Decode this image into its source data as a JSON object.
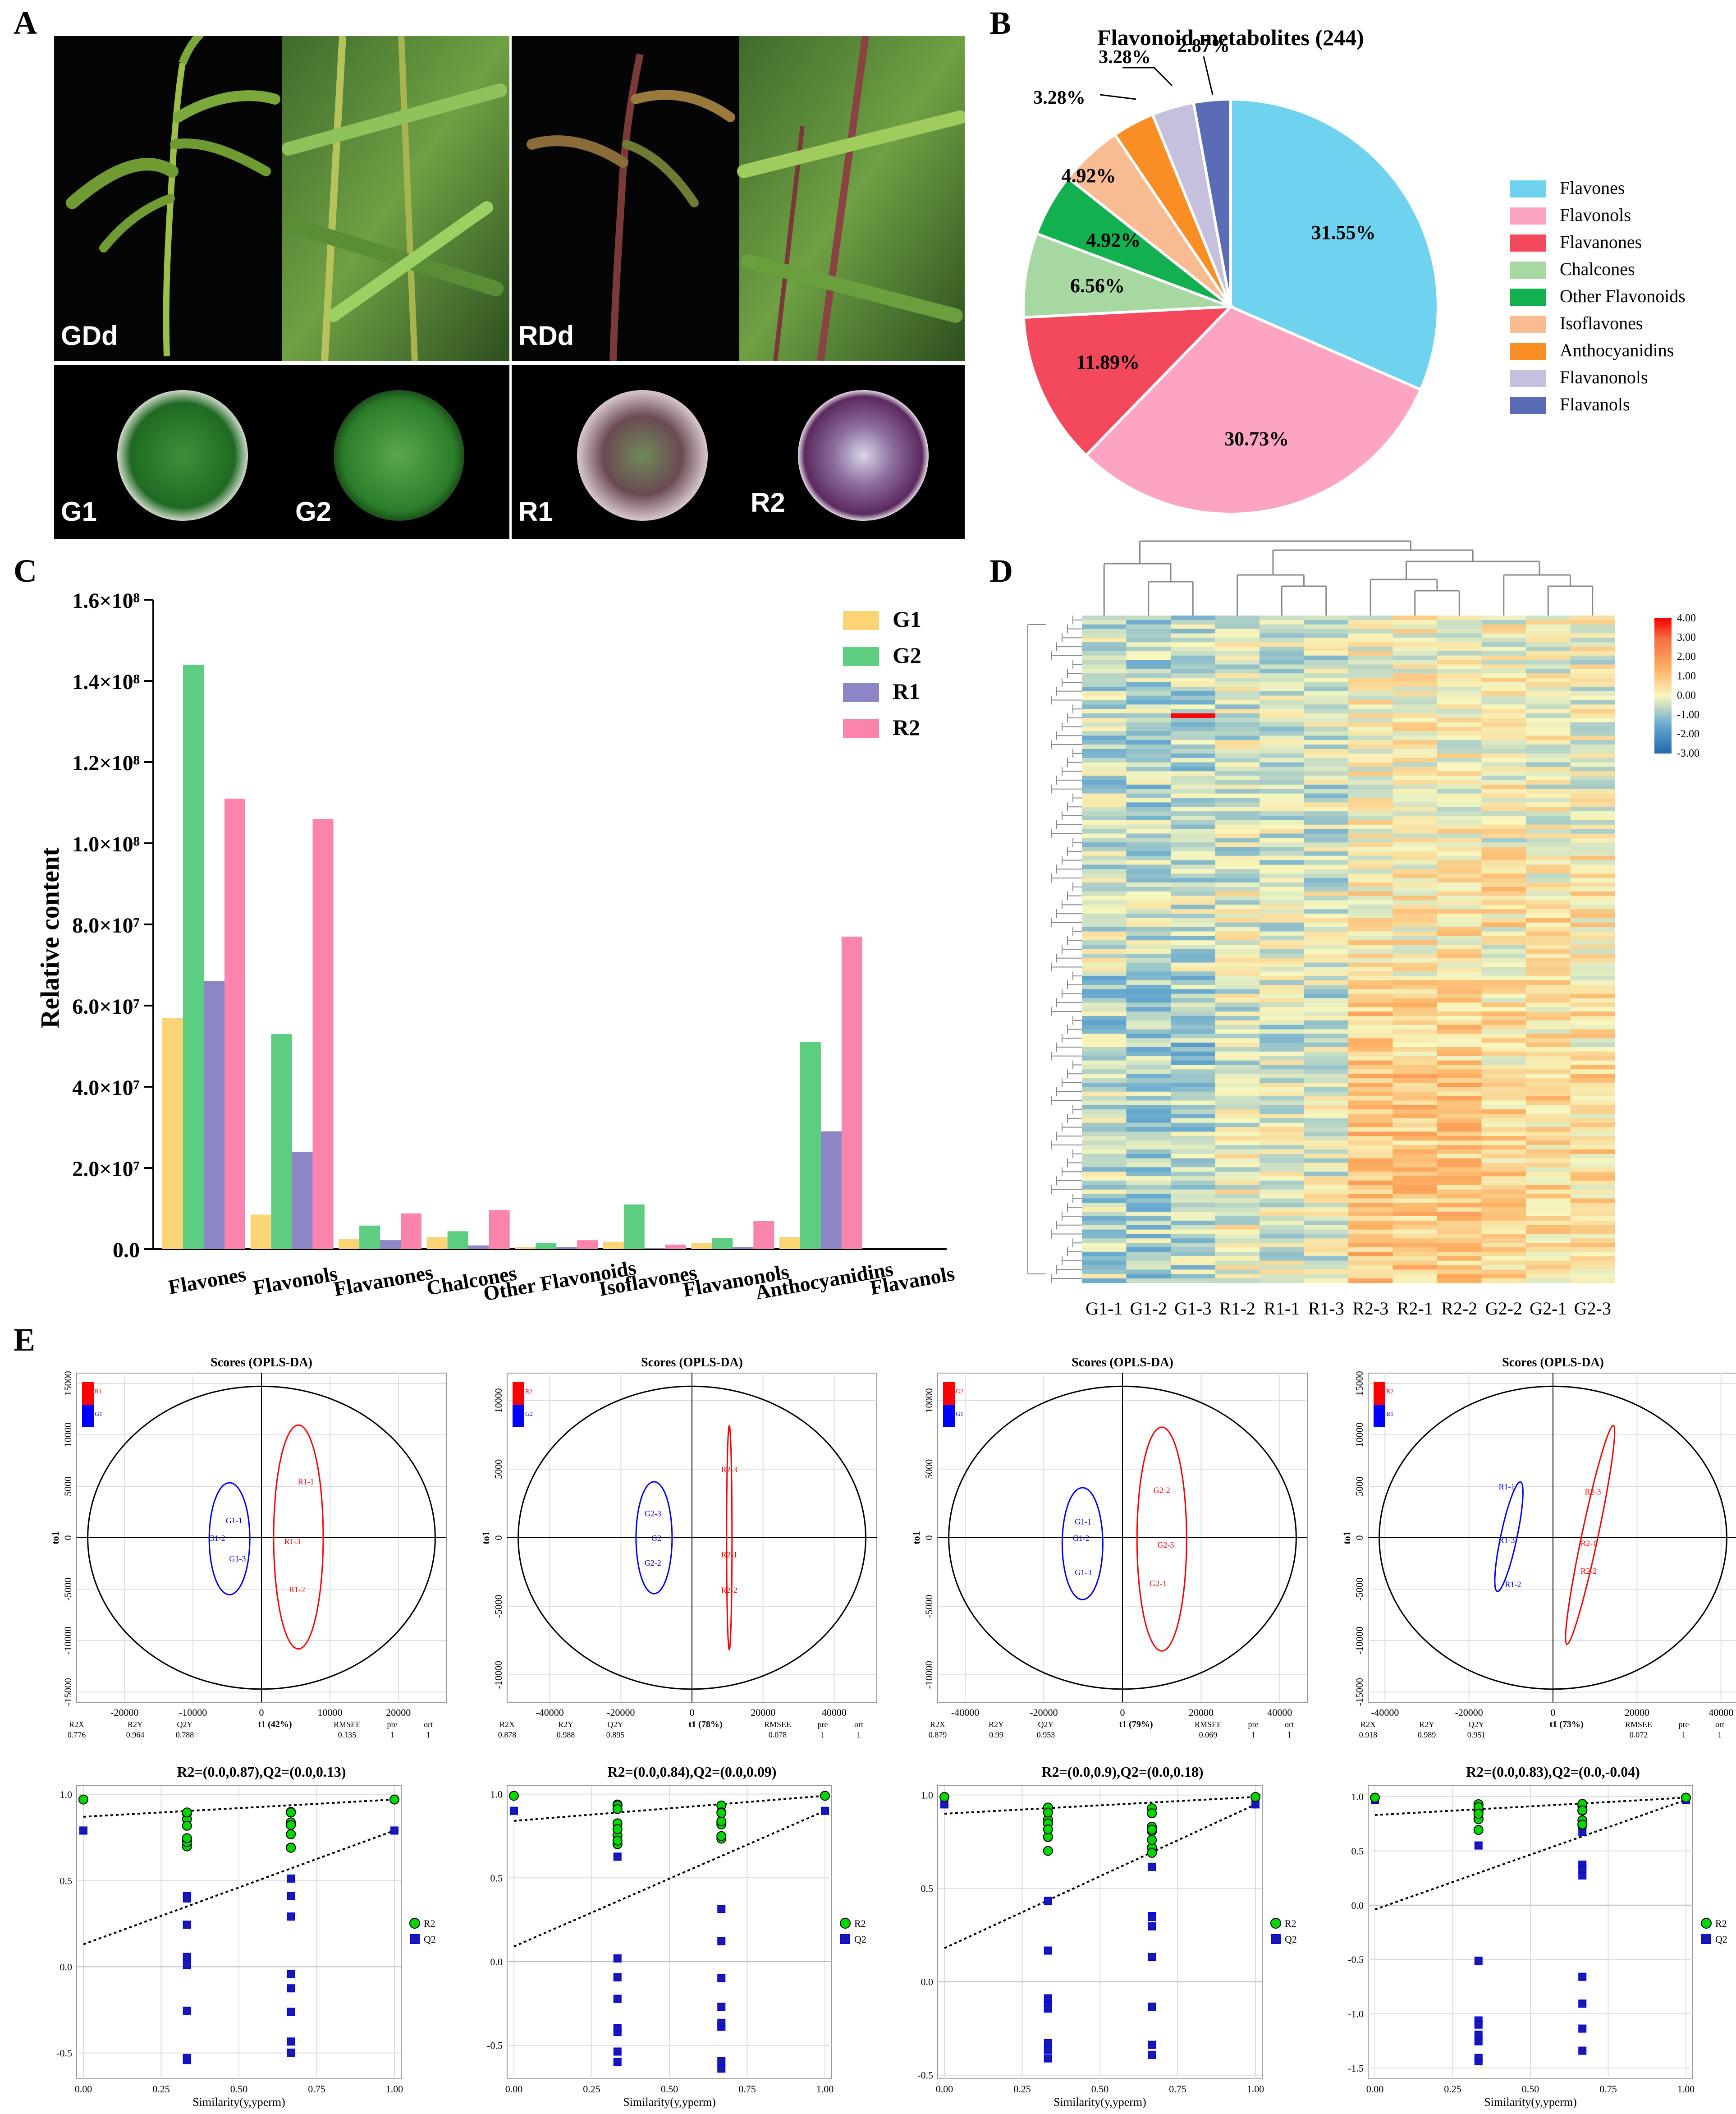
{
  "panels": {
    "a": "A",
    "b": "B",
    "c": "C",
    "d": "D",
    "e": "E"
  },
  "panel_a": {
    "labels": [
      "GDd",
      "RDd",
      "G1",
      "G2",
      "R1",
      "R2"
    ]
  },
  "colors": {
    "flavones": "#6fd3f0",
    "flavonols": "#fca4c2",
    "flavanones": "#f4495c",
    "chalcones": "#a8d8a2",
    "other": "#12b04f",
    "isoflavones": "#f9bc92",
    "anthocyanidins": "#f88e24",
    "flavanonols": "#c5c0de",
    "flavanols": "#5b6cb6",
    "g1": "#fbd575",
    "g2": "#5dcd82",
    "r1": "#8c86c7",
    "r2": "#fb84ad",
    "ring": "#000000",
    "red": "#ff0000",
    "blue": "#0000ff",
    "green": "#00d800",
    "navy": "#1a1aa6"
  },
  "chart_data": [
    {
      "id": "B",
      "type": "pie",
      "title": "Flavonoid metabolites (244)",
      "categories": [
        "Flavones",
        "Flavonols",
        "Flavanones",
        "Chalcones",
        "Other Flavonoids",
        "Isoflavones",
        "Anthocyanidins",
        "Flavanonols",
        "Flavanols"
      ],
      "values": [
        31.55,
        30.73,
        11.89,
        6.56,
        4.92,
        4.92,
        3.28,
        3.28,
        2.87
      ],
      "data_labels": [
        "31.55%",
        "30.73%",
        "11.89%",
        "6.56%",
        "4.92%",
        "4.92%",
        "3.28%",
        "3.28%",
        "2.87%"
      ],
      "legend_position": "right"
    },
    {
      "id": "C",
      "type": "bar",
      "xlabel": "",
      "ylabel": "Relative content",
      "categories": [
        "Flavones",
        "Flavonols",
        "Flavanones",
        "Chalcones",
        "Other Flavonoids",
        "Isoflavones",
        "Flavanonols",
        "Anthocyanidins",
        "Flavanols"
      ],
      "ylim": [
        0,
        160000000
      ],
      "yticks": [
        "0.0",
        "2.0×10⁷",
        "4.0×10⁷",
        "6.0×10⁷",
        "8.0×10⁷",
        "1.0×10⁸",
        "1.2×10⁸",
        "1.4×10⁸",
        "1.6×10⁸"
      ],
      "series": [
        {
          "name": "G1",
          "values": [
            57000000,
            8500000,
            2500000,
            3000000,
            500000,
            1800000,
            1500000,
            3000000,
            0
          ]
        },
        {
          "name": "G2",
          "values": [
            144000000,
            53000000,
            5800000,
            4400000,
            1500000,
            11000000,
            2700000,
            51000000,
            0
          ]
        },
        {
          "name": "R1",
          "values": [
            66000000,
            24000000,
            2200000,
            900000,
            500000,
            300000,
            500000,
            29000000,
            0
          ]
        },
        {
          "name": "R2",
          "values": [
            111000000,
            106000000,
            8800000,
            9600000,
            2200000,
            1100000,
            6900000,
            77000000,
            0
          ]
        }
      ],
      "legend_position": "top-right"
    },
    {
      "id": "D",
      "type": "heatmap",
      "columns": [
        "G1-1",
        "G1-2",
        "G1-3",
        "R1-2",
        "R1-1",
        "R1-3",
        "R2-3",
        "R2-1",
        "R2-2",
        "G2-2",
        "G2-1",
        "G2-3"
      ],
      "row_count": 244,
      "colorbar_ticks": [
        "4.00",
        "3.00",
        "2.00",
        "1.00",
        "0.00",
        "-1.00",
        "-2.00",
        "-3.00"
      ],
      "range": [
        -3,
        4
      ]
    },
    {
      "id": "E1",
      "type": "scatter",
      "title": "Scores (OPLS-DA)",
      "xlabel": "t1 (42%)",
      "ylabel": "to1",
      "legend": [
        "R1",
        "G1"
      ],
      "xlim": [
        -27000,
        27000
      ],
      "ylim": [
        -16000,
        16000
      ],
      "xticks": [
        "-20000",
        "-10000",
        "0",
        "10000",
        "20000"
      ],
      "yticks": [
        "15000",
        "10000",
        "5000",
        "0",
        "-5000",
        "-10000",
        "-15000"
      ],
      "points": [
        {
          "label": "G1-1",
          "x": -4000,
          "y": 1700,
          "group": "G1"
        },
        {
          "label": "G1-2",
          "x": -6500,
          "y": 0,
          "group": "G1"
        },
        {
          "label": "G1-3",
          "x": -3500,
          "y": -2000,
          "group": "G1"
        },
        {
          "label": "R1-1",
          "x": 6500,
          "y": 5500,
          "group": "R1"
        },
        {
          "label": "R1-3",
          "x": 4500,
          "y": -300,
          "group": "R1"
        },
        {
          "label": "R1-2",
          "x": 5200,
          "y": -5000,
          "group": "R1"
        }
      ],
      "stats_headers": [
        "R2X",
        "R2Y",
        "Q2Y",
        "RMSEE",
        "pre",
        "ort"
      ],
      "stats_values": [
        "0.776",
        "0.964",
        "0.788",
        "0.135",
        "1",
        "1"
      ]
    },
    {
      "id": "E2",
      "type": "scatter",
      "title": "Scores (OPLS-DA)",
      "xlabel": "t1 (78%)",
      "ylabel": "to1",
      "legend": [
        "R2",
        "G2"
      ],
      "xlim": [
        -52000,
        52000
      ],
      "ylim": [
        -12000,
        12000
      ],
      "xticks": [
        "-40000",
        "-20000",
        "0",
        "20000",
        "40000"
      ],
      "yticks": [
        "10000",
        "5000",
        "0",
        "-5000",
        "-10000"
      ],
      "points": [
        {
          "label": "G2-3",
          "x": -11000,
          "y": 1800,
          "group": "G2"
        },
        {
          "label": "G2",
          "x": -10000,
          "y": 0,
          "group": "G2"
        },
        {
          "label": "G2-2",
          "x": -11000,
          "y": -1800,
          "group": "G2"
        },
        {
          "label": "R2-3",
          "x": 10500,
          "y": 5000,
          "group": "R2"
        },
        {
          "label": "R2-1",
          "x": 10500,
          "y": -1200,
          "group": "R2"
        },
        {
          "label": "R2-2",
          "x": 10500,
          "y": -3800,
          "group": "R2"
        }
      ],
      "stats_headers": [
        "R2X",
        "R2Y",
        "Q2Y",
        "RMSEE",
        "pre",
        "ort"
      ],
      "stats_values": [
        "0.878",
        "0.988",
        "0.895",
        "0.078",
        "1",
        "1"
      ]
    },
    {
      "id": "E3",
      "type": "scatter",
      "title": "Scores (OPLS-DA)",
      "xlabel": "t1 (79%)",
      "ylabel": "to1",
      "legend": [
        "G2",
        "G1"
      ],
      "xlim": [
        -47000,
        47000
      ],
      "ylim": [
        -12000,
        12000
      ],
      "xticks": [
        "-40000",
        "-20000",
        "0",
        "20000",
        "40000"
      ],
      "yticks": [
        "10000",
        "5000",
        "0",
        "-5000",
        "-10000"
      ],
      "points": [
        {
          "label": "G1-1",
          "x": -10000,
          "y": 1200,
          "group": "G1"
        },
        {
          "label": "G1-2",
          "x": -10500,
          "y": 0,
          "group": "G1"
        },
        {
          "label": "G1-3",
          "x": -10000,
          "y": -2500,
          "group": "G1"
        },
        {
          "label": "G2-2",
          "x": 10000,
          "y": 3500,
          "group": "G2"
        },
        {
          "label": "G2-3",
          "x": 11000,
          "y": -500,
          "group": "G2"
        },
        {
          "label": "G2-1",
          "x": 9000,
          "y": -3300,
          "group": "G2"
        }
      ],
      "stats_headers": [
        "R2X",
        "R2Y",
        "Q2Y",
        "RMSEE",
        "pre",
        "ort"
      ],
      "stats_values": [
        "0.879",
        "0.99",
        "0.953",
        "0.069",
        "1",
        "1"
      ]
    },
    {
      "id": "E4",
      "type": "scatter",
      "title": "Scores (OPLS-DA)",
      "xlabel": "t1 (73%)",
      "ylabel": "to1",
      "legend": [
        "R2",
        "R1"
      ],
      "xlim": [
        -44000,
        44000
      ],
      "ylim": [
        -16000,
        16000
      ],
      "xticks": [
        "-40000",
        "-20000",
        "0",
        "20000",
        "40000"
      ],
      "yticks": [
        "15000",
        "10000",
        "5000",
        "0",
        "-5000",
        "-10000",
        "-15000"
      ],
      "points": [
        {
          "label": "R1-1",
          "x": -11000,
          "y": 5000,
          "group": "R1"
        },
        {
          "label": "R1-3",
          "x": -11000,
          "y": -200,
          "group": "R1"
        },
        {
          "label": "R1-2",
          "x": -9500,
          "y": -4500,
          "group": "R1"
        },
        {
          "label": "R2-3",
          "x": 9500,
          "y": 4500,
          "group": "R2"
        },
        {
          "label": "R2-1",
          "x": 8500,
          "y": -500,
          "group": "R2"
        },
        {
          "label": "R2-2",
          "x": 8500,
          "y": -3200,
          "group": "R2"
        }
      ],
      "stats_headers": [
        "R2X",
        "R2Y",
        "Q2Y",
        "RMSEE",
        "pre",
        "ort"
      ],
      "stats_values": [
        "0.918",
        "0.989",
        "0.951",
        "0.072",
        "1",
        "1"
      ]
    },
    {
      "id": "E5",
      "type": "scatter",
      "title": "R2=(0.0,0.87),Q2=(0.0,0.13)",
      "xlabel": "Similarity(y,yperm)",
      "ylim": [
        -0.65,
        1.05
      ],
      "xticks": [
        "0.00",
        "0.25",
        "0.50",
        "0.75",
        "1.00"
      ],
      "yticks": [
        "1.0",
        "0.5",
        "0.0",
        "-0.5"
      ],
      "legend": [
        "R2",
        "Q2"
      ],
      "intercepts": {
        "r2": 0.87,
        "q2": 0.13
      },
      "final": {
        "r2": 0.97,
        "q2": 0.79
      }
    },
    {
      "id": "E6",
      "type": "scatter",
      "title": "R2=(0.0,0.84),Q2=(0.0,0.09)",
      "xlabel": "Similarity(y,yperm)",
      "ylim": [
        -0.7,
        1.05
      ],
      "xticks": [
        "0.00",
        "0.25",
        "0.50",
        "0.75",
        "1.00"
      ],
      "yticks": [
        "1.0",
        "0.5",
        "0.0",
        "-0.5"
      ],
      "legend": [
        "R2",
        "Q2"
      ],
      "intercepts": {
        "r2": 0.84,
        "q2": 0.09
      },
      "final": {
        "r2": 0.99,
        "q2": 0.9
      }
    },
    {
      "id": "E7",
      "type": "scatter",
      "title": "R2=(0.0,0.9),Q2=(0.0,0.18)",
      "xlabel": "Similarity(y,yperm)",
      "ylim": [
        -0.52,
        1.05
      ],
      "xticks": [
        "0.00",
        "0.25",
        "0.50",
        "0.75",
        "1.00"
      ],
      "yticks": [
        "1.0",
        "0.5",
        "0.0",
        "-0.5"
      ],
      "legend": [
        "R2",
        "Q2"
      ],
      "intercepts": {
        "r2": 0.9,
        "q2": 0.18
      },
      "final": {
        "r2": 0.99,
        "q2": 0.95
      }
    },
    {
      "id": "E8",
      "type": "scatter",
      "title": "R2=(0.0,0.83),Q2=(0.0,-0.04)",
      "xlabel": "Similarity(y,yperm)",
      "ylim": [
        -1.6,
        1.1
      ],
      "xticks": [
        "0.00",
        "0.25",
        "0.50",
        "0.75",
        "1.00"
      ],
      "yticks": [
        "1.0",
        "0.5",
        "0.0",
        "-0.5",
        "-1.0",
        "-1.5"
      ],
      "legend": [
        "R2",
        "Q2"
      ],
      "intercepts": {
        "r2": 0.83,
        "q2": -0.04
      },
      "final": {
        "r2": 0.99,
        "q2": 0.97
      }
    }
  ]
}
